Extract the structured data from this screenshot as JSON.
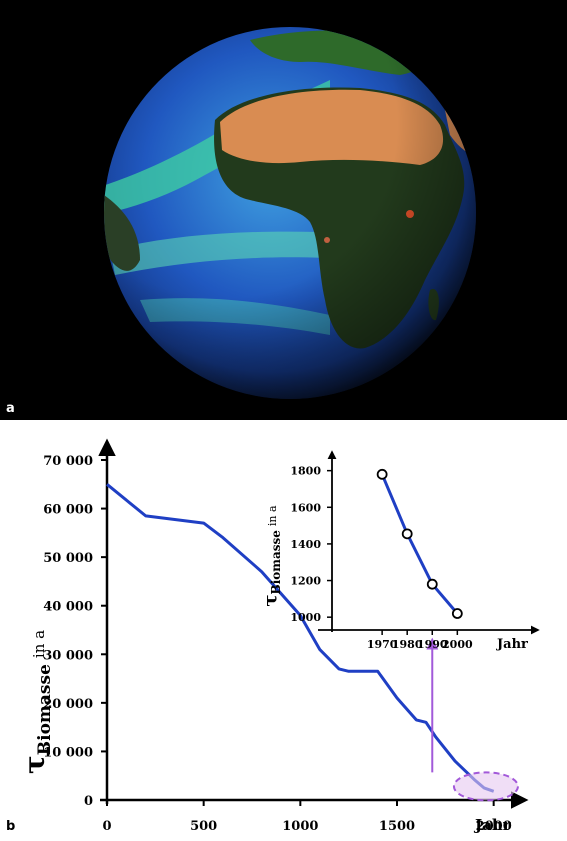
{
  "panels": {
    "a_label": "a",
    "b_label": "b"
  },
  "colors": {
    "line": "#1f3fc4",
    "axis": "#000000",
    "highlight_fill": "#e6c8f0",
    "highlight_stroke": "#a259d9",
    "arrow": "#a259d9",
    "space": "#000000",
    "ocean_deep": "#1a3f9a",
    "ocean_bloom": "#3fd3a0",
    "desert": "#d98c52",
    "vegetation": "#223a1c"
  },
  "chart_data": [
    {
      "type": "line",
      "title": "",
      "xlabel": "Jahr",
      "ylabel": {
        "symbol": "τ",
        "subscript": "Biomasse",
        "suffix": "in a"
      },
      "xlim": [
        0,
        2100
      ],
      "ylim": [
        0,
        70000
      ],
      "xticks": [
        0,
        500,
        1000,
        1500,
        2000
      ],
      "xtick_labels": [
        "0",
        "500",
        "1000",
        "1500",
        "2000"
      ],
      "yticks": [
        0,
        10000,
        20000,
        30000,
        40000,
        50000,
        60000,
        70000
      ],
      "ytick_labels": [
        "0",
        "10 000",
        "20 000",
        "30 000",
        "40 000",
        "50 000",
        "60 000",
        "70 000"
      ],
      "grid": false,
      "series": [
        {
          "x": [
            0,
            200,
            500,
            600,
            800,
            1000,
            1100,
            1200,
            1250,
            1400,
            1500,
            1600,
            1650,
            1700,
            1800,
            1900,
            1950,
            2000
          ],
          "values": [
            65000,
            58500,
            57000,
            54000,
            47000,
            38000,
            31000,
            27000,
            26500,
            26500,
            21000,
            16500,
            16000,
            13000,
            8000,
            4200,
            2500,
            1800
          ]
        }
      ],
      "highlight": {
        "x_center": 1960,
        "y_center": 2800,
        "x_range": [
          1800,
          2100
        ]
      }
    },
    {
      "type": "scatter",
      "title": "",
      "xlabel": "Jahr",
      "ylabel": {
        "symbol": "τ",
        "subscript": "Biomasse",
        "suffix": "in a"
      },
      "xlim": [
        1950,
        2025
      ],
      "ylim": [
        930,
        1880
      ],
      "xticks": [
        1970,
        1980,
        1990,
        2000
      ],
      "xtick_labels": [
        "1970",
        "1980",
        "1990",
        "2000"
      ],
      "yticks": [
        1000,
        1200,
        1400,
        1600,
        1800
      ],
      "ytick_labels": [
        "1000",
        "1200",
        "1400",
        "1600",
        "1800"
      ],
      "grid": false,
      "connected": true,
      "series": [
        {
          "x": [
            1970,
            1980,
            1990,
            2000
          ],
          "values": [
            1780,
            1455,
            1180,
            1020
          ]
        }
      ]
    }
  ]
}
